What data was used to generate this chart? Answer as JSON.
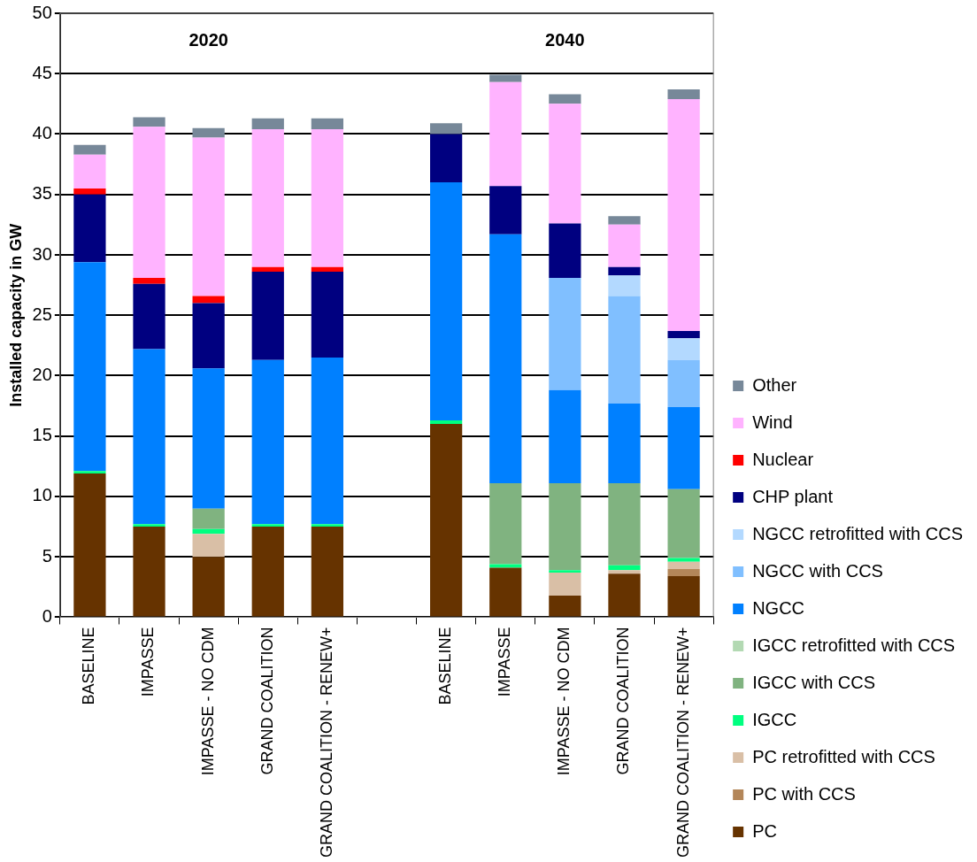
{
  "chart_data": {
    "type": "bar",
    "stacked": true,
    "ylabel": "Installed capacity in GW",
    "categories": [
      "BASELINE",
      "IMPASSE",
      "IMPASSE - NO CDM",
      "GRAND COALITION",
      "GRAND COALITION - RENEW+",
      null,
      "BASELINE",
      "IMPASSE",
      "IMPASSE - NO CDM",
      "GRAND COALITION",
      "GRAND COALITION - RENEW+"
    ],
    "annotations": [
      "2020",
      "2040"
    ],
    "ylim": [
      0,
      50
    ],
    "yticks": [
      0,
      5,
      10,
      15,
      20,
      25,
      30,
      35,
      40,
      45,
      50
    ],
    "grid": "y",
    "legend": "bottom right",
    "series": [
      {
        "name": "PC",
        "color": "#663300",
        "values": [
          11.9,
          7.5,
          5.0,
          7.5,
          7.5,
          null,
          16.0,
          4.1,
          1.8,
          3.6,
          3.4
        ]
      },
      {
        "name": "PC with CCS",
        "color": "#b38659",
        "values": [
          0,
          0,
          0,
          0,
          0,
          null,
          0,
          0,
          0,
          0,
          0.6
        ]
      },
      {
        "name": "PC retrofitted with CCS",
        "color": "#d9bfa6",
        "values": [
          0,
          0,
          1.9,
          0,
          0,
          null,
          0,
          0,
          1.9,
          0.3,
          0.6
        ]
      },
      {
        "name": "IGCC",
        "color": "#00ff80",
        "values": [
          0.2,
          0.2,
          0.4,
          0.2,
          0.2,
          null,
          0.3,
          0.3,
          0.2,
          0.4,
          0.3
        ]
      },
      {
        "name": "IGCC with CCS",
        "color": "#80b380",
        "values": [
          0,
          0,
          1.7,
          0,
          0,
          null,
          0,
          6.7,
          7.2,
          6.8,
          5.7
        ]
      },
      {
        "name": "IGCC retrofitted with CCS",
        "color": "#b3d9b3",
        "values": [
          0,
          0,
          0,
          0,
          0,
          null,
          0,
          0,
          0,
          0,
          0
        ]
      },
      {
        "name": "NGCC",
        "color": "#0080ff",
        "values": [
          17.3,
          14.5,
          11.6,
          13.6,
          13.8,
          null,
          19.7,
          20.6,
          7.7,
          6.6,
          6.8
        ]
      },
      {
        "name": "NGCC with CCS",
        "color": "#80bfff",
        "values": [
          0,
          0,
          0,
          0,
          0,
          null,
          0,
          0,
          9.3,
          8.9,
          3.9
        ]
      },
      {
        "name": "NGCC retrofitted with CCS",
        "color": "#b3d9ff",
        "values": [
          0,
          0,
          0,
          0,
          0,
          null,
          0,
          0,
          0,
          1.7,
          1.8
        ]
      },
      {
        "name": "CHP plant",
        "color": "#000080",
        "values": [
          5.6,
          5.4,
          5.4,
          7.3,
          7.1,
          null,
          4.0,
          4.0,
          4.5,
          0.7,
          0.6
        ]
      },
      {
        "name": "Nuclear",
        "color": "#ff0000",
        "values": [
          0.5,
          0.5,
          0.6,
          0.4,
          0.4,
          null,
          0,
          0,
          0,
          0,
          0
        ]
      },
      {
        "name": "Wind",
        "color": "#ffb3ff",
        "values": [
          2.8,
          12.5,
          13.1,
          11.4,
          11.4,
          null,
          0,
          8.6,
          9.9,
          3.5,
          19.2
        ]
      },
      {
        "name": "Other",
        "color": "#778899",
        "values": [
          0.8,
          0.8,
          0.8,
          0.9,
          0.9,
          null,
          0.9,
          0.6,
          0.8,
          0.7,
          0.8
        ]
      }
    ]
  }
}
